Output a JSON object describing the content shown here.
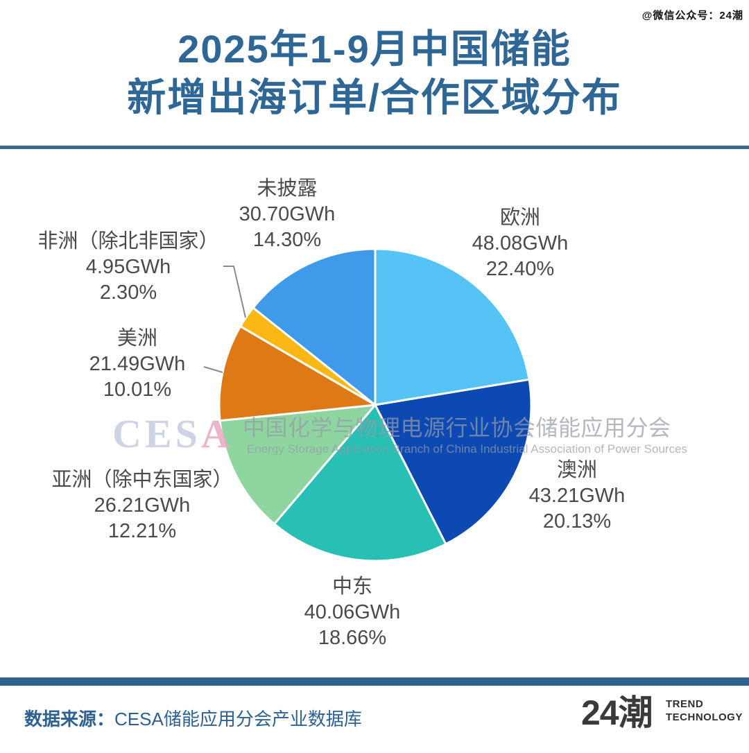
{
  "header": {
    "wechat_tag": "@微信公众号：24潮",
    "title_line1": "2025年1-9月中国储能",
    "title_line2": "新增出海订单/合作区域分布"
  },
  "watermark": {
    "logo_part1": "CES",
    "logo_part2": "A",
    "cn": "中国化学与物理电源行业协会储能应用分会",
    "en": "Energy Storage Application Branch of China Industrial Association of Power Sources"
  },
  "footer": {
    "source_label": "数据来源：",
    "source_text": "CESA储能应用分会产业数据库",
    "logo_text": "24潮",
    "logo_sub1": "TREND",
    "logo_sub2": "TECHNOLOGY"
  },
  "colors": {
    "title_blue": "#2E6695",
    "rule_blue": "#38678F",
    "footer_bar_blue": "#2E6291",
    "label_gray": "#4A4A4A",
    "leader_line_gray": "#8A8A8A"
  },
  "chart_data": {
    "type": "pie",
    "title": "2025年1-9月中国储能新增出海订单/合作区域分布",
    "unit": "GWh",
    "direction": "clockwise",
    "start_angle": "12-o-clock",
    "legend": "none",
    "labels_outside": true,
    "slices": [
      {
        "id": "europe",
        "label": "欧洲",
        "gwh": 48.08,
        "pct": 22.4,
        "value_label": "48.08GWh",
        "pct_label": "22.40%",
        "color": "#55C3F6"
      },
      {
        "id": "australia",
        "label": "澳洲",
        "gwh": 43.21,
        "pct": 20.13,
        "value_label": "43.21GWh",
        "pct_label": "20.13%",
        "color": "#0D49B3"
      },
      {
        "id": "middle-east",
        "label": "中东",
        "gwh": 40.06,
        "pct": 18.66,
        "value_label": "40.06GWh",
        "pct_label": "18.66%",
        "color": "#28BFB5"
      },
      {
        "id": "asia",
        "label": "亚洲（除中东国家）",
        "gwh": 26.21,
        "pct": 12.21,
        "value_label": "26.21GWh",
        "pct_label": "12.21%",
        "color": "#8FD5A0"
      },
      {
        "id": "americas",
        "label": "美洲",
        "gwh": 21.49,
        "pct": 10.01,
        "value_label": "21.49GWh",
        "pct_label": "10.01%",
        "color": "#DE7A16"
      },
      {
        "id": "africa",
        "label": "非洲（除北非国家）",
        "gwh": 4.95,
        "pct": 2.3,
        "value_label": "4.95GWh",
        "pct_label": "2.30%",
        "color": "#FBB714"
      },
      {
        "id": "undisclosed",
        "label": "未披露",
        "gwh": 30.7,
        "pct": 14.3,
        "value_label": "30.70GWh",
        "pct_label": "14.30%",
        "color": "#3F9BE9"
      }
    ]
  }
}
